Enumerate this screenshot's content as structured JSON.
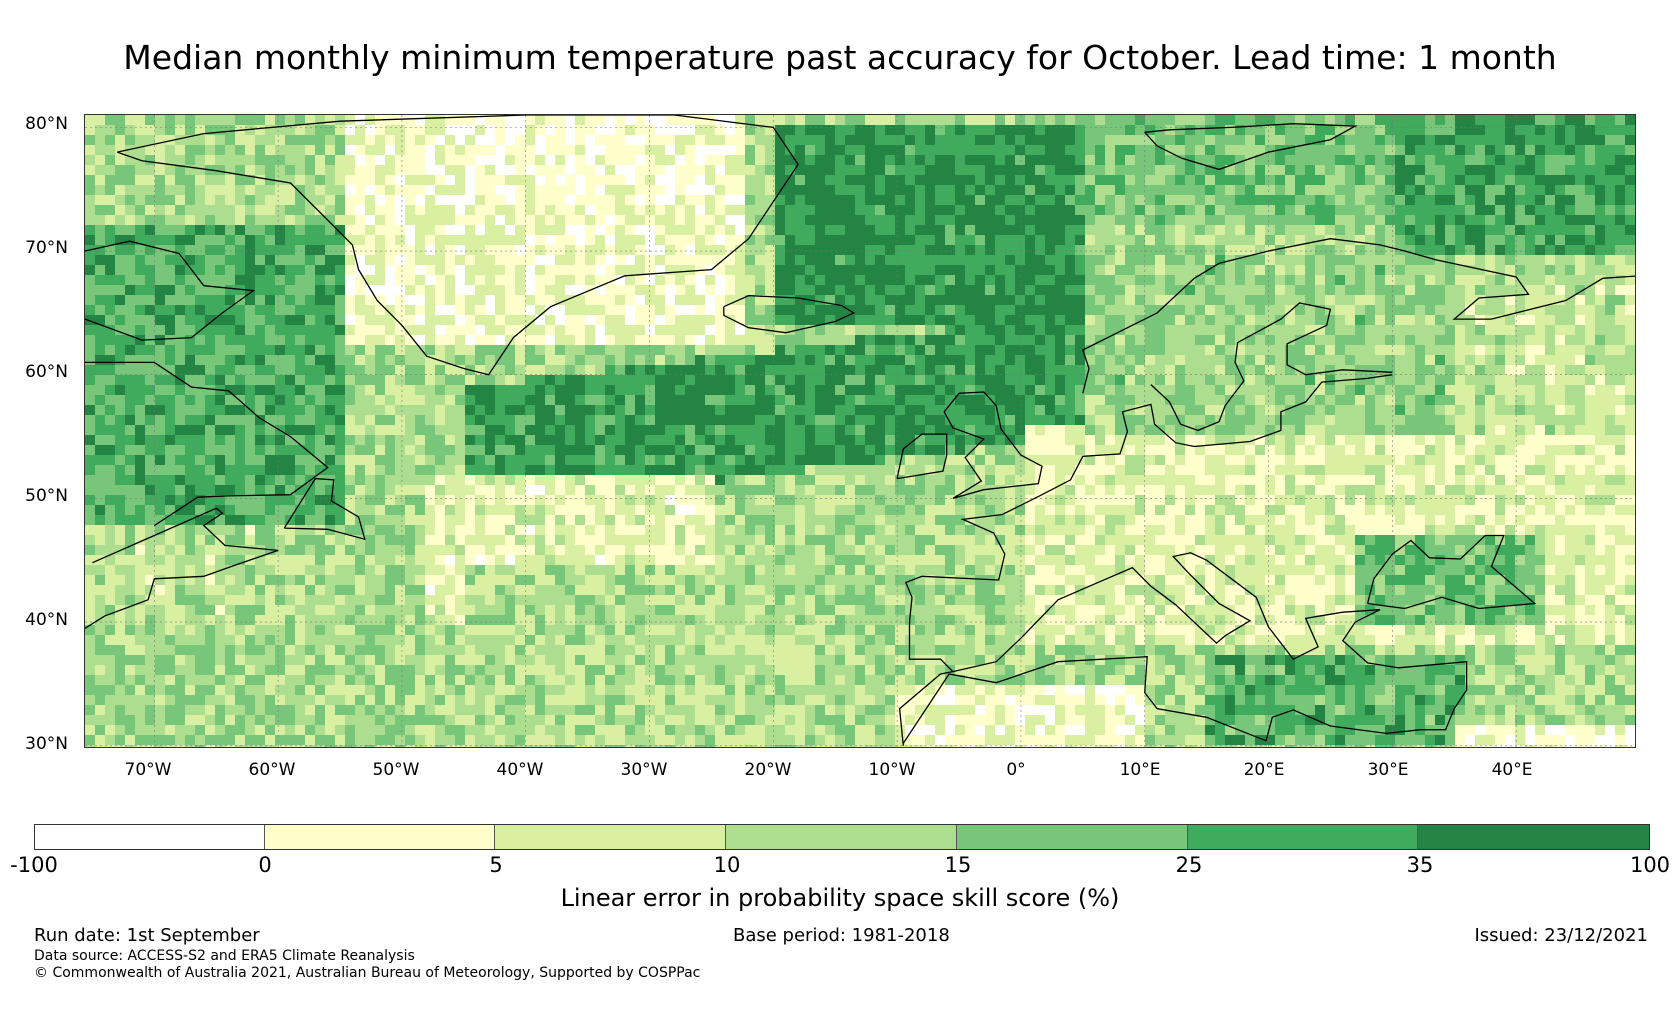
{
  "title": "Median monthly minimum temperature past accuracy for October. Lead time: 1 month",
  "map": {
    "lat_labels": [
      "80°N",
      "70°N",
      "60°N",
      "50°N",
      "40°N",
      "30°N"
    ],
    "lon_labels": [
      "70°W",
      "60°W",
      "50°W",
      "40°W",
      "30°W",
      "20°W",
      "10°W",
      "0°",
      "10°E",
      "20°E",
      "30°E",
      "40°E"
    ],
    "colors": {
      "ocean_base": "#cfeaa6",
      "gridline": "#777777",
      "coast": "#000000"
    }
  },
  "colorbar": {
    "ticks": [
      "-100",
      "0",
      "5",
      "10",
      "15",
      "25",
      "35",
      "100"
    ],
    "segments": [
      {
        "from": -100,
        "to": 0,
        "color": "#ffffff"
      },
      {
        "from": 0,
        "to": 5,
        "color": "#ffffcc"
      },
      {
        "from": 5,
        "to": 10,
        "color": "#d9f0a3"
      },
      {
        "from": 10,
        "to": 15,
        "color": "#addd8e"
      },
      {
        "from": 15,
        "to": 25,
        "color": "#78c679"
      },
      {
        "from": 25,
        "to": 35,
        "color": "#41ab5d"
      },
      {
        "from": 35,
        "to": 100,
        "color": "#238443"
      }
    ],
    "label": "Linear error in probability space skill score (%)"
  },
  "footer": {
    "run_date": "Run date: 1st September",
    "base_period": "Base period: 1981-2018",
    "issued": "Issued: 23/12/2021",
    "data_source": "Data source: ACCESS-S2 and ERA5 Climate Reanalysis",
    "copyright": "© Commonwealth of Australia 2021, Australian Bureau of Meteorology, Supported by COSPPac"
  }
}
